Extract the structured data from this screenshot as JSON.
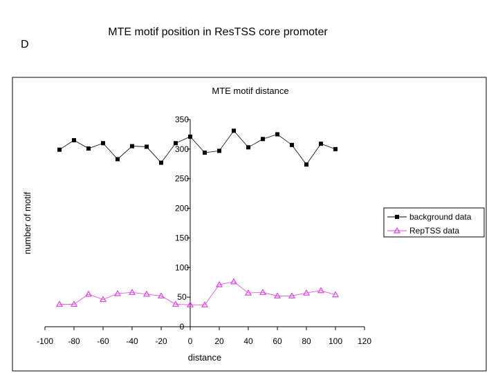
{
  "slide": {
    "panel_letter": "D",
    "title": "MTE motif  position in ResTSS core promoter"
  },
  "chart_data": {
    "type": "line",
    "title": "MTE motif distance",
    "xlabel": "distance",
    "ylabel": "number of motif",
    "xlim": [
      -100,
      120
    ],
    "ylim": [
      0,
      350
    ],
    "x_ticks": [
      -100,
      -80,
      -60,
      -40,
      -20,
      0,
      20,
      40,
      60,
      80,
      100,
      120
    ],
    "x_tick_labels": [
      "-100",
      "-80",
      "-60",
      "-40",
      "-20",
      "0",
      "20",
      "40",
      "60",
      "80",
      "100",
      "120"
    ],
    "y_ticks": [
      0,
      50,
      100,
      150,
      200,
      250,
      300,
      350
    ],
    "y_tick_labels": [
      "0",
      "50",
      "100",
      "150",
      "200",
      "250",
      "300",
      "350"
    ],
    "grid": false,
    "legend_position": "right",
    "x": [
      -90,
      -80,
      -70,
      -60,
      -50,
      -40,
      -30,
      -20,
      -10,
      0,
      10,
      20,
      30,
      40,
      50,
      60,
      70,
      80,
      90,
      100
    ],
    "series": [
      {
        "name": "background data",
        "color": "#000000",
        "marker": "square",
        "values": [
          299,
          315,
          301,
          310,
          283,
          305,
          304,
          277,
          310,
          321,
          294,
          297,
          331,
          303,
          317,
          325,
          307,
          274,
          309,
          300
        ]
      },
      {
        "name": "RepTSS data",
        "color": "#e040e0",
        "marker": "triangle",
        "values": [
          38,
          38,
          55,
          46,
          56,
          58,
          55,
          52,
          38,
          37,
          37,
          71,
          76,
          57,
          58,
          52,
          52,
          57,
          61,
          54
        ]
      }
    ]
  }
}
